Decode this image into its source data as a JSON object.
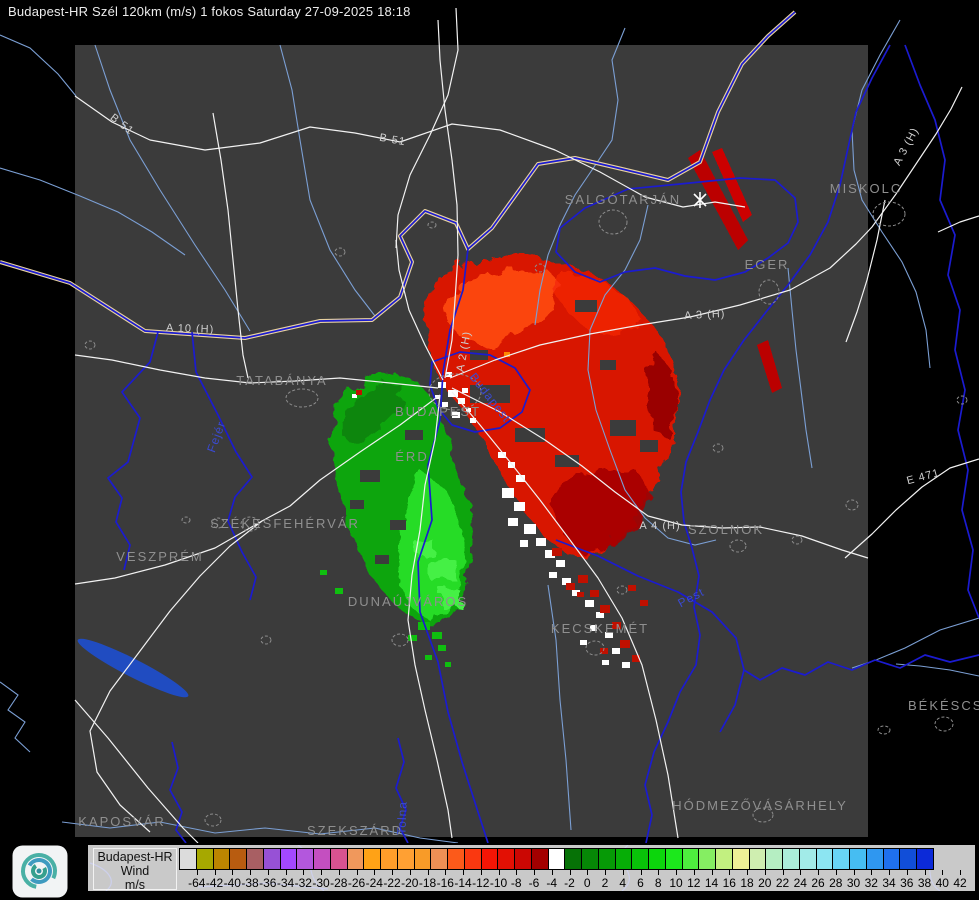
{
  "header": {
    "title": "Budapest-HR Szél 120km (m/s) 1 fokos Saturday 27-09-2025 18:18"
  },
  "map": {
    "cities": [
      {
        "name": "SALGÓTARJÁN"
      },
      {
        "name": "MISKOLC"
      },
      {
        "name": "EGER"
      },
      {
        "name": "TATABÁNYA"
      },
      {
        "name": "BUDAPEST"
      },
      {
        "name": "ÉRD"
      },
      {
        "name": "SZÉKESFEHÉRVÁR"
      },
      {
        "name": "VESZPRÉM"
      },
      {
        "name": "DUNAÚJVÁROS"
      },
      {
        "name": "KECSKEMÉT"
      },
      {
        "name": "SZOLNOK"
      },
      {
        "name": "BÉKÉSCSABA"
      },
      {
        "name": "HÓDMEZŐVÁSÁRHELY"
      },
      {
        "name": "KAPOSVÁR"
      },
      {
        "name": "SZEKSZÁRD"
      }
    ],
    "road_labels": [
      {
        "text": "B 51"
      },
      {
        "text": "B 51"
      },
      {
        "text": "A 3 (H)"
      },
      {
        "text": "A 3 (H)"
      },
      {
        "text": "A 2 (H)"
      },
      {
        "text": "A 4 (H)"
      },
      {
        "text": "A 10 (H)"
      },
      {
        "text": "E 471"
      }
    ],
    "water_labels": [
      {
        "text": "Budapest"
      },
      {
        "text": "Pest"
      },
      {
        "text": "Tolna"
      },
      {
        "text": "Fejér"
      }
    ],
    "colors": {
      "background": "#000000",
      "radar_area": "#3b3b3b",
      "road": "#f2f2f2",
      "river_major": "#1b1bd0",
      "river_minor": "#7b9fd4",
      "border_band": "#e8d2a0",
      "city_label": "#8f8f8f",
      "echo_away_red": "#e51a00",
      "echo_toward_green": "#12b412",
      "echo_zero_white": "#ffffff"
    }
  },
  "legend": {
    "product": "Budapest-HR",
    "parameter": "Wind",
    "unit": "m/s",
    "tick_labels": [
      "-64",
      "-42",
      "-40",
      "-38",
      "-36",
      "-34",
      "-32",
      "-30",
      "-28",
      "-26",
      "-24",
      "-22",
      "-20",
      "-18",
      "-16",
      "-14",
      "-12",
      "-10",
      "-8",
      "-6",
      "-4",
      "-2",
      "0",
      "2",
      "4",
      "6",
      "8",
      "10",
      "12",
      "14",
      "16",
      "18",
      "20",
      "22",
      "24",
      "26",
      "28",
      "30",
      "32",
      "34",
      "36",
      "38",
      "40",
      "42"
    ],
    "cell_colors": [
      "#dcdcdc",
      "#a6a800",
      "#bb8500",
      "#b85c10",
      "#a85f63",
      "#9751d6",
      "#a348ff",
      "#b357dd",
      "#c44fc0",
      "#d85390",
      "#f0985c",
      "#ffa216",
      "#ff9d2a",
      "#ffa033",
      "#f89b28",
      "#ee8f55",
      "#fc5a1a",
      "#fa3810",
      "#f51505",
      "#e31004",
      "#cb0703",
      "#a30000",
      "#ffffff",
      "#067206",
      "#068706",
      "#069a06",
      "#06ae06",
      "#09c209",
      "#0cd60c",
      "#1ce81c",
      "#4eee3e",
      "#85ee62",
      "#c2f080",
      "#eef096",
      "#cfeeb0",
      "#b5eec2",
      "#abeeda",
      "#a2ebe8",
      "#8ce5f2",
      "#68d5f6",
      "#46bdf2",
      "#2f97f0",
      "#1f70ee",
      "#114ed8",
      "#0c2ad8"
    ]
  },
  "branding": {
    "logo": "met-spiral-icon"
  }
}
